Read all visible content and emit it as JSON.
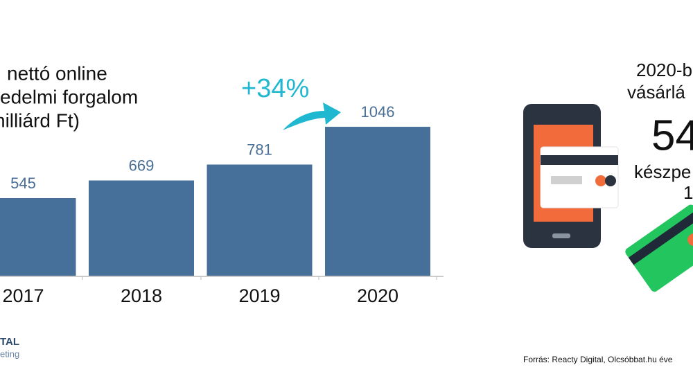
{
  "chart_data": {
    "type": "bar",
    "title_lines": [
      "nettó online",
      "edelmi forgalom",
      "nilliárd Ft)"
    ],
    "categories": [
      "2017",
      "2018",
      "2019",
      "2020"
    ],
    "values": [
      545,
      669,
      781,
      1046
    ],
    "color": "#46709a",
    "annotation": "+34%"
  },
  "side_panel": {
    "lines": [
      "2020-b",
      "vásárlá"
    ],
    "big_number": "54",
    "sub_lines": [
      "készpe",
      "1"
    ]
  },
  "logo": {
    "line1": "TAL",
    "line2": "eting"
  },
  "source": "Forrás: Reacty Digital, Olcsóbbat.hu éve"
}
